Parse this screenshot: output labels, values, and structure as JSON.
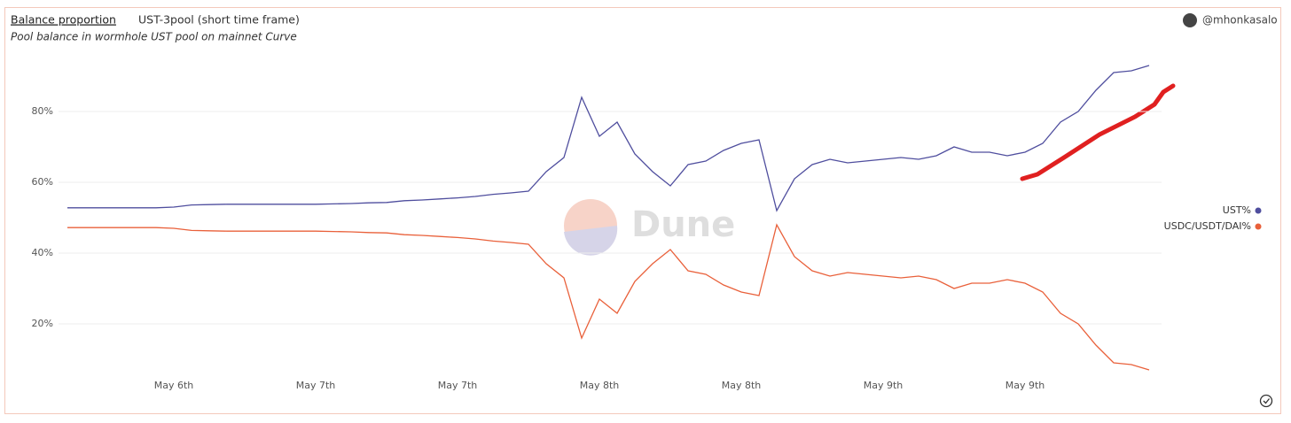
{
  "header": {
    "title": "Balance proportion",
    "query": "UST-3pool (short time frame)",
    "subtitle": "Pool balance in wormhole UST pool on mainnet Curve",
    "author": "@mhonkasalo"
  },
  "watermark": "Dune",
  "chart_data": {
    "type": "line",
    "categories": [
      null,
      null,
      null,
      null,
      null,
      null,
      "May 6th",
      null,
      null,
      null,
      null,
      null,
      null,
      null,
      "May 7th",
      null,
      null,
      null,
      null,
      null,
      null,
      null,
      "May 7th",
      null,
      null,
      null,
      null,
      null,
      null,
      null,
      "May 8th",
      null,
      null,
      null,
      null,
      null,
      null,
      null,
      "May 8th",
      null,
      null,
      null,
      null,
      null,
      null,
      null,
      "May 9th",
      null,
      null,
      null,
      null,
      null,
      null,
      null,
      "May 9th",
      null,
      null,
      null,
      null,
      null,
      null,
      null
    ],
    "series": [
      {
        "name": "UST%",
        "color": "#4f4e9e",
        "values": [
          52.8,
          52.8,
          52.8,
          52.8,
          52.8,
          52.8,
          53.0,
          53.6,
          53.7,
          53.8,
          53.8,
          53.8,
          53.8,
          53.8,
          53.8,
          53.9,
          54.0,
          54.2,
          54.3,
          54.8,
          55.0,
          55.3,
          55.6,
          56.0,
          56.6,
          57.0,
          57.5,
          63.0,
          67.0,
          84.0,
          73.0,
          77.0,
          68.0,
          63.0,
          59.0,
          65.0,
          66.0,
          69.0,
          71.0,
          72.0,
          52.0,
          61.0,
          65.0,
          66.5,
          65.5,
          66.0,
          66.5,
          67.0,
          66.5,
          67.5,
          70.0,
          68.5,
          68.5,
          67.5,
          68.5,
          71.0,
          77.0,
          80.0,
          86.0,
          91.0,
          91.5,
          93.0
        ]
      },
      {
        "name": "USDC/USDT/DAI%",
        "color": "#e9603a",
        "values": [
          47.2,
          47.2,
          47.2,
          47.2,
          47.2,
          47.2,
          47.0,
          46.4,
          46.3,
          46.2,
          46.2,
          46.2,
          46.2,
          46.2,
          46.2,
          46.1,
          46.0,
          45.8,
          45.7,
          45.2,
          45.0,
          44.7,
          44.4,
          44.0,
          43.4,
          43.0,
          42.5,
          37.0,
          33.0,
          16.0,
          27.0,
          23.0,
          32.0,
          37.0,
          41.0,
          35.0,
          34.0,
          31.0,
          29.0,
          28.0,
          48.0,
          39.0,
          35.0,
          33.5,
          34.5,
          34.0,
          33.5,
          33.0,
          33.5,
          32.5,
          30.0,
          31.5,
          31.5,
          32.5,
          31.5,
          29.0,
          23.0,
          20.0,
          14.0,
          9.0,
          8.5,
          7.0
        ]
      }
    ],
    "ylim": [
      5,
      98
    ],
    "yticks": [
      {
        "value": 20,
        "label": "20%"
      },
      {
        "value": 40,
        "label": "40%"
      },
      {
        "value": 60,
        "label": "60%"
      },
      {
        "value": 80,
        "label": "80%"
      }
    ],
    "grid": true,
    "legend": "right"
  }
}
